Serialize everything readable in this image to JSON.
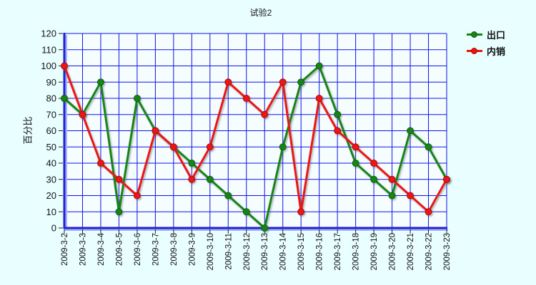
{
  "title": "试验2",
  "colors": {
    "page_bg": "#E9FFFF",
    "plot_bg": "#F6FDFF",
    "grid": "#1212E8",
    "axis": "#2020D8",
    "axis_shadow": "#A8B4F0",
    "tick": "#222222",
    "text": "#111111"
  },
  "chart_data": {
    "type": "line",
    "title": "试验2",
    "xlabel": "",
    "ylabel": "百分比",
    "ylim": [
      0,
      120
    ],
    "ytick_step": 10,
    "grid": true,
    "legend_position": "top-right",
    "categories": [
      "2009-3-2",
      "2009-3-3",
      "2009-3-4",
      "2009-3-5",
      "2009-3-6",
      "2009-3-7",
      "2009-3-8",
      "2009-3-9",
      "2009-3-10",
      "2009-3-11",
      "2009-3-12",
      "2009-3-13",
      "2009-3-14",
      "2009-3-15",
      "2009-3-16",
      "2009-3-17",
      "2009-3-18",
      "2009-3-19",
      "2009-3-20",
      "2009-3-21",
      "2009-3-22",
      "2009-3-23"
    ],
    "series": [
      {
        "name": "出口",
        "color": "#168516",
        "edge": "#0A5C0A",
        "values": [
          80,
          70,
          90,
          10,
          80,
          60,
          50,
          40,
          30,
          20,
          10,
          0,
          50,
          90,
          100,
          70,
          40,
          30,
          20,
          60,
          50,
          30
        ]
      },
      {
        "name": "内销",
        "color": "#EC1212",
        "edge": "#A50A0A",
        "values": [
          100,
          70,
          40,
          30,
          20,
          60,
          50,
          30,
          50,
          90,
          80,
          70,
          90,
          10,
          80,
          60,
          50,
          40,
          30,
          20,
          10,
          30
        ]
      }
    ]
  }
}
